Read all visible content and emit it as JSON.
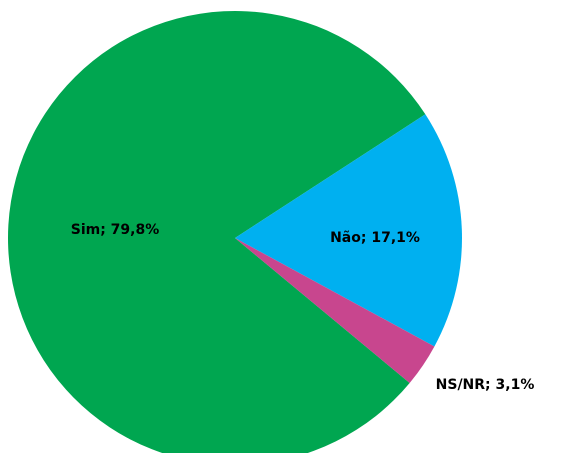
{
  "chart_data": {
    "type": "pie",
    "categories": [
      "Sim",
      "Não",
      "NS/NR"
    ],
    "values": [
      79.8,
      17.1,
      3.1
    ],
    "value_labels": [
      "Sim; 79,8%",
      "Não; 17,1%",
      "NS/NR; 3,1%"
    ],
    "colors": [
      "#00a650",
      "#00b0f0",
      "#c8468e"
    ]
  }
}
